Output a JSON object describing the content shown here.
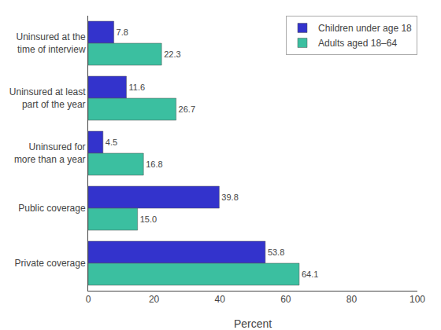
{
  "chart_data": {
    "type": "bar",
    "orientation": "horizontal",
    "categories": [
      "Uninsured at the\ntime of interview",
      "Uninsured at least\npart of the year",
      "Uninsured for\nmore than a year",
      "Public coverage",
      "Private coverage"
    ],
    "series": [
      {
        "name": "Children under age 18",
        "color": "#3333cc",
        "values": [
          7.8,
          11.6,
          4.5,
          39.8,
          53.8
        ],
        "value_labels": [
          "7.8",
          "11.6",
          "4.5",
          "39.8",
          "53.8"
        ]
      },
      {
        "name": "Adults aged 18–64",
        "color": "#3bbfa0",
        "values": [
          22.3,
          26.7,
          16.8,
          15.0,
          64.1
        ],
        "value_labels": [
          "22.3",
          "26.7",
          "16.8",
          "15.0",
          "64.1"
        ]
      }
    ],
    "xlabel": "Percent",
    "xlim": [
      0,
      100
    ],
    "xticks": [
      0,
      20,
      40,
      60,
      80,
      100
    ],
    "data_labels": true,
    "grid": false,
    "legend": "upper right"
  }
}
